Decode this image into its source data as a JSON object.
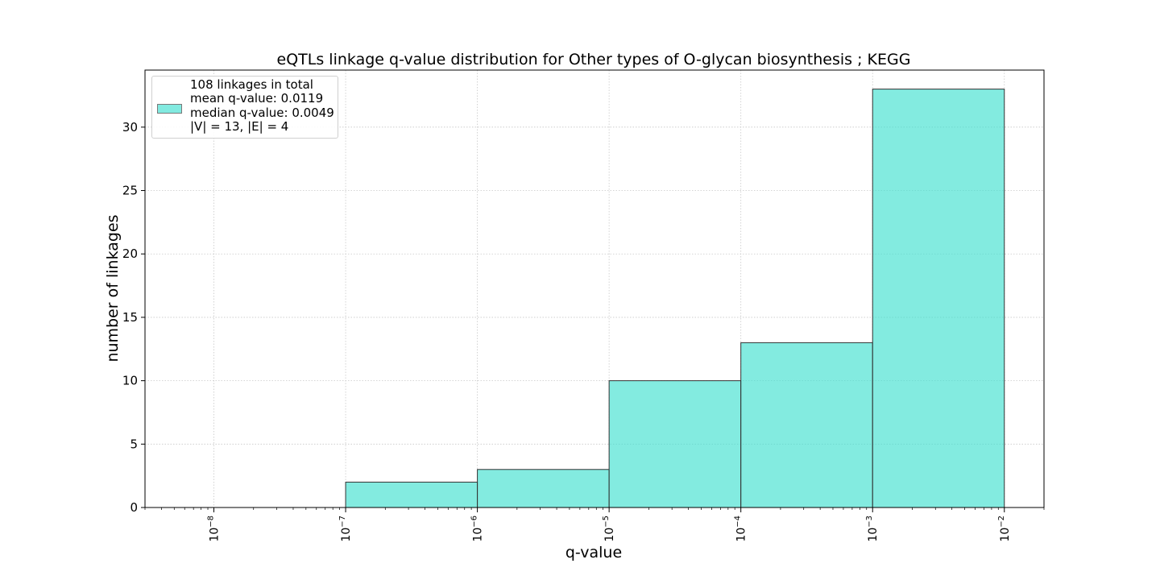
{
  "chart_data": {
    "type": "bar",
    "title": "eQTLs linkage q-value distribution for Other types of O-glycan biosynthesis ; KEGG",
    "xlabel": "q-value",
    "ylabel": "number of linkages",
    "x_scale": "log",
    "xlim": [
      3e-09,
      0.02
    ],
    "ylim": [
      0,
      34.5
    ],
    "grid": true,
    "bins": [
      {
        "left": 1e-07,
        "right": 1e-06,
        "value": 2
      },
      {
        "left": 1e-06,
        "right": 1e-05,
        "value": 3
      },
      {
        "left": 1e-05,
        "right": 0.0001,
        "value": 10
      },
      {
        "left": 0.0001,
        "right": 0.001,
        "value": 13
      },
      {
        "left": 0.001,
        "right": 0.01,
        "value": 33
      }
    ],
    "x_ticks": [
      {
        "value": 1e-08,
        "base": "10",
        "exp": "−8"
      },
      {
        "value": 1e-07,
        "base": "10",
        "exp": "−7"
      },
      {
        "value": 1e-06,
        "base": "10",
        "exp": "−6"
      },
      {
        "value": 1e-05,
        "base": "10",
        "exp": "−5"
      },
      {
        "value": 0.0001,
        "base": "10",
        "exp": "−4"
      },
      {
        "value": 0.001,
        "base": "10",
        "exp": "−3"
      },
      {
        "value": 0.01,
        "base": "10",
        "exp": "−2"
      }
    ],
    "y_ticks": [
      0,
      5,
      10,
      15,
      20,
      25,
      30
    ],
    "bar_color": "#40e0d0",
    "bar_opacity": 0.65,
    "edge_color": "#333333",
    "legend": {
      "placement": "upper-left",
      "lines": [
        "108 linkages in total",
        "mean q-value: 0.0119",
        "median q-value: 0.0049",
        "|V| = 13, |E| = 4"
      ]
    }
  }
}
